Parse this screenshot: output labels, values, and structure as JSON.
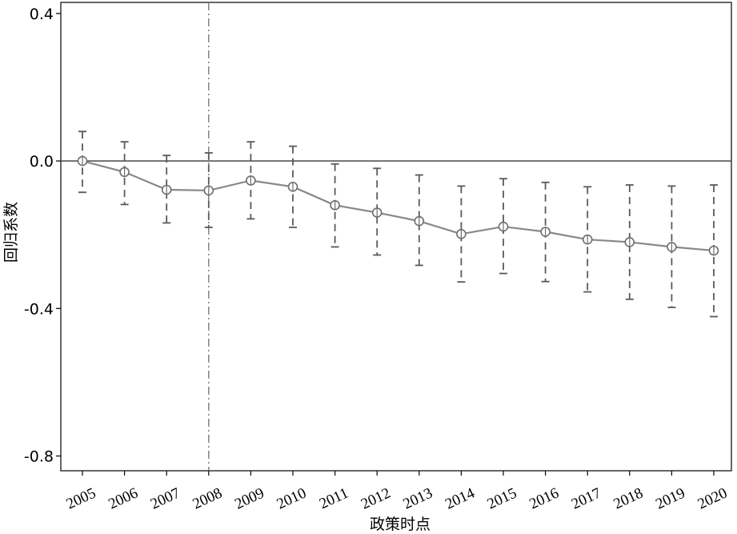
{
  "chart_data": {
    "type": "line",
    "title": "",
    "xlabel": "政策时点",
    "ylabel": "回归系数",
    "x": [
      "2005",
      "2006",
      "2007",
      "2008",
      "2009",
      "2010",
      "2011",
      "2012",
      "2013",
      "2014",
      "2015",
      "2016",
      "2017",
      "2018",
      "2019",
      "2020"
    ],
    "series": [
      {
        "values": [
          0.0,
          -0.03,
          -0.078,
          -0.08,
          -0.053,
          -0.07,
          -0.12,
          -0.14,
          -0.163,
          -0.198,
          -0.178,
          -0.192,
          -0.213,
          -0.22,
          -0.233,
          -0.243
        ],
        "ci_lower": [
          -0.085,
          -0.118,
          -0.168,
          -0.18,
          -0.157,
          -0.18,
          -0.233,
          -0.255,
          -0.283,
          -0.328,
          -0.305,
          -0.327,
          -0.355,
          -0.375,
          -0.397,
          -0.422
        ],
        "ci_upper": [
          0.08,
          0.052,
          0.015,
          0.022,
          0.052,
          0.04,
          -0.008,
          -0.02,
          -0.038,
          -0.068,
          -0.048,
          -0.058,
          -0.07,
          -0.065,
          -0.068,
          -0.065
        ]
      }
    ],
    "yticks": [
      "0.4",
      "0.0",
      "-0.4",
      "-0.8"
    ],
    "ytick_values": [
      0.4,
      0.0,
      -0.4,
      -0.8
    ],
    "ylim": [
      -0.84,
      0.43
    ],
    "reference_hline": 0.0,
    "reference_vline": "2008",
    "grid": false,
    "colors": {
      "series_line": "#888888",
      "errorbar": "#5a5a5a",
      "reference_hline": "#555555",
      "reference_vline": "#707070",
      "axes": "#000000"
    }
  }
}
